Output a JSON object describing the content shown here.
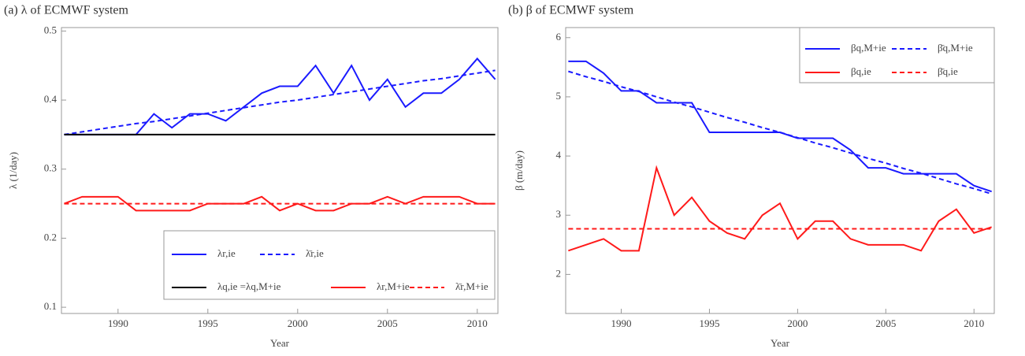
{
  "chart_data": [
    {
      "type": "line",
      "title": "(a) λ of ECMWF system",
      "xlabel": "Year",
      "ylabel": "λ (1/day)",
      "x": [
        1987,
        1988,
        1989,
        1990,
        1991,
        1992,
        1993,
        1994,
        1995,
        1996,
        1997,
        1998,
        1999,
        2000,
        2001,
        2002,
        2003,
        2004,
        2005,
        2006,
        2007,
        2008,
        2009,
        2010,
        2011
      ],
      "xlim": [
        1986.85,
        2011.15
      ],
      "xticks": [
        1990,
        1995,
        2000,
        2005,
        2010
      ],
      "ylim": [
        0.091,
        0.505
      ],
      "yticks": [
        0.1,
        0.2,
        0.3,
        0.4,
        0.5
      ],
      "series": [
        {
          "name": "λr,ie",
          "color": "#1a1aff",
          "dash": false,
          "values": [
            0.35,
            0.35,
            0.35,
            0.35,
            0.35,
            0.38,
            0.36,
            0.38,
            0.38,
            0.37,
            0.39,
            0.41,
            0.42,
            0.42,
            0.45,
            0.41,
            0.45,
            0.4,
            0.43,
            0.39,
            0.41,
            0.41,
            0.43,
            0.46,
            0.43
          ]
        },
        {
          "name": "λ̄r,ie",
          "color": "#1a1aff",
          "dash": true,
          "values": [
            0.35,
            0.354,
            0.358,
            0.362,
            0.366,
            0.369,
            0.373,
            0.377,
            0.381,
            0.385,
            0.389,
            0.393,
            0.397,
            0.4,
            0.404,
            0.408,
            0.412,
            0.416,
            0.42,
            0.424,
            0.428,
            0.431,
            0.435,
            0.439,
            0.443
          ]
        },
        {
          "name": "λq,ie =λq,M+ie",
          "color": "#000000",
          "dash": false,
          "values": [
            0.35,
            0.35,
            0.35,
            0.35,
            0.35,
            0.35,
            0.35,
            0.35,
            0.35,
            0.35,
            0.35,
            0.35,
            0.35,
            0.35,
            0.35,
            0.35,
            0.35,
            0.35,
            0.35,
            0.35,
            0.35,
            0.35,
            0.35,
            0.35,
            0.35
          ]
        },
        {
          "name": "λr,M+ie",
          "color": "#ff1a1a",
          "dash": false,
          "values": [
            0.25,
            0.26,
            0.26,
            0.26,
            0.24,
            0.24,
            0.24,
            0.24,
            0.25,
            0.25,
            0.25,
            0.26,
            0.24,
            0.25,
            0.24,
            0.24,
            0.25,
            0.25,
            0.26,
            0.25,
            0.26,
            0.26,
            0.26,
            0.25,
            0.25
          ]
        },
        {
          "name": "λ̄r,M+ie",
          "color": "#ff1a1a",
          "dash": true,
          "values": [
            0.25,
            0.25,
            0.25,
            0.25,
            0.25,
            0.25,
            0.25,
            0.25,
            0.25,
            0.25,
            0.25,
            0.25,
            0.25,
            0.25,
            0.25,
            0.25,
            0.25,
            0.25,
            0.25,
            0.25,
            0.25,
            0.25,
            0.25,
            0.25,
            0.25
          ]
        }
      ]
    },
    {
      "type": "line",
      "title": "(b) β of ECMWF system",
      "xlabel": "Year",
      "ylabel": "β (m/day)",
      "x": [
        1987,
        1988,
        1989,
        1990,
        1991,
        1992,
        1993,
        1994,
        1995,
        1996,
        1997,
        1998,
        1999,
        2000,
        2001,
        2002,
        2003,
        2004,
        2005,
        2006,
        2007,
        2008,
        2009,
        2010,
        2011
      ],
      "xlim": [
        1986.85,
        2011.15
      ],
      "xticks": [
        1990,
        1995,
        2000,
        2005,
        2010
      ],
      "ylim": [
        1.34,
        6.17
      ],
      "yticks": [
        2,
        3,
        4,
        5,
        6
      ],
      "series": [
        {
          "name": "βq,M+ie",
          "color": "#1a1aff",
          "dash": false,
          "values": [
            5.6,
            5.6,
            5.4,
            5.1,
            5.1,
            4.9,
            4.9,
            4.9,
            4.4,
            4.4,
            4.4,
            4.4,
            4.4,
            4.3,
            4.3,
            4.3,
            4.1,
            3.8,
            3.8,
            3.7,
            3.7,
            3.7,
            3.7,
            3.5,
            3.4
          ]
        },
        {
          "name": "β̄q,M+ie",
          "color": "#1a1aff",
          "dash": true,
          "values": [
            5.43,
            5.34,
            5.26,
            5.17,
            5.09,
            5.0,
            4.91,
            4.83,
            4.74,
            4.65,
            4.57,
            4.48,
            4.4,
            4.31,
            4.22,
            4.14,
            4.05,
            3.96,
            3.88,
            3.79,
            3.71,
            3.62,
            3.53,
            3.45,
            3.36
          ]
        },
        {
          "name": "βq,ie",
          "color": "#ff1a1a",
          "dash": false,
          "values": [
            2.4,
            2.5,
            2.6,
            2.4,
            2.4,
            3.8,
            3.0,
            3.3,
            2.9,
            2.7,
            2.6,
            3.0,
            3.2,
            2.6,
            2.9,
            2.9,
            2.6,
            2.5,
            2.5,
            2.5,
            2.4,
            2.9,
            3.1,
            2.7,
            2.8
          ]
        },
        {
          "name": "β̄q,ie",
          "color": "#ff1a1a",
          "dash": true,
          "values": [
            2.77,
            2.77,
            2.77,
            2.77,
            2.77,
            2.77,
            2.77,
            2.77,
            2.77,
            2.77,
            2.77,
            2.77,
            2.77,
            2.77,
            2.77,
            2.77,
            2.77,
            2.77,
            2.77,
            2.77,
            2.77,
            2.77,
            2.77,
            2.77,
            2.77
          ]
        }
      ]
    }
  ]
}
